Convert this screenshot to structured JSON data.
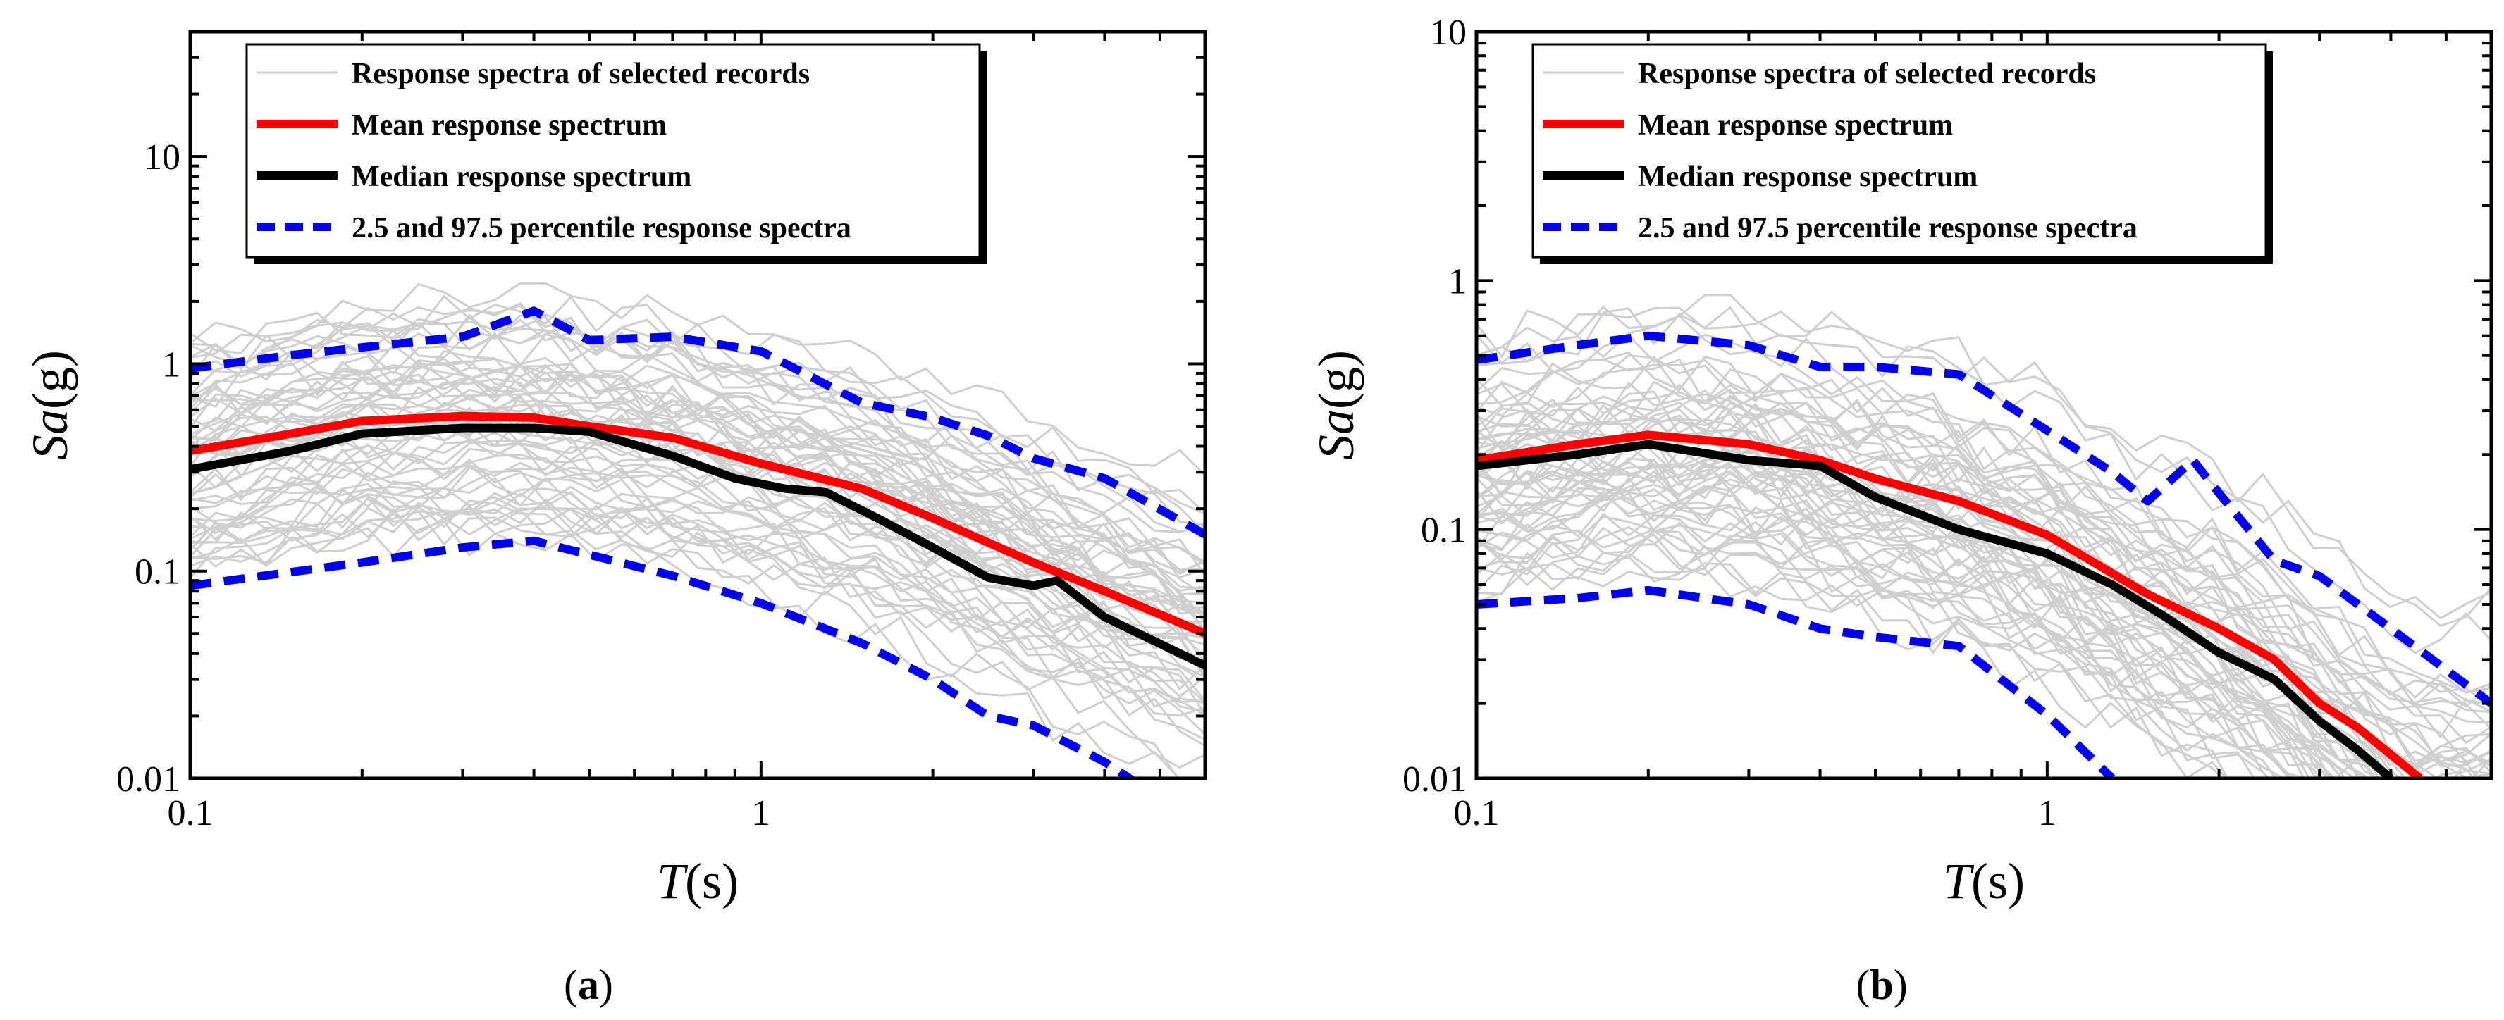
{
  "colors": {
    "records": "#cfcfcf",
    "mean": "#ff0000",
    "median": "#000000",
    "percentile": "#0000ee"
  },
  "chart_data": [
    {
      "type": "line",
      "panel_label": {
        "open": "(",
        "letter": "a",
        "close": ")"
      },
      "xlabel": {
        "italic": "T",
        "rest": "(s)"
      },
      "ylabel": {
        "italic": "Sa",
        "rest": "(g)"
      },
      "xscale": "log",
      "yscale": "log",
      "xlim": [
        0.1,
        6
      ],
      "ylim": [
        0.01,
        40
      ],
      "xticks": [
        {
          "value": 0.1,
          "label": "0.1"
        },
        {
          "value": 1,
          "label": "1"
        }
      ],
      "yticks": [
        {
          "value": 0.01,
          "label": "0.01"
        },
        {
          "value": 0.1,
          "label": "0.1"
        },
        {
          "value": 1,
          "label": "1"
        },
        {
          "value": 10,
          "label": "10"
        }
      ],
      "legend_position": "top-left",
      "legend": [
        "Response spectra of selected records",
        "Mean response spectrum",
        "Median response spectrum",
        "2.5 and 97.5 percentile response spectra"
      ],
      "series": [
        {
          "name": "Mean response spectrum",
          "style": "mean",
          "x": [
            0.1,
            0.15,
            0.2,
            0.3,
            0.4,
            0.5,
            0.7,
            1.0,
            1.5,
            2.0,
            3.0,
            4.0,
            6.0
          ],
          "y": [
            0.38,
            0.46,
            0.53,
            0.56,
            0.55,
            0.5,
            0.44,
            0.33,
            0.25,
            0.18,
            0.11,
            0.08,
            0.05
          ]
        },
        {
          "name": "Median response spectrum",
          "style": "median",
          "x": [
            0.1,
            0.15,
            0.2,
            0.3,
            0.4,
            0.5,
            0.7,
            0.9,
            1.1,
            1.3,
            1.6,
            2.0,
            2.5,
            3.0,
            3.3,
            4.0,
            6.0
          ],
          "y": [
            0.31,
            0.38,
            0.46,
            0.49,
            0.49,
            0.47,
            0.36,
            0.28,
            0.25,
            0.24,
            0.18,
            0.13,
            0.093,
            0.085,
            0.09,
            0.06,
            0.035
          ]
        },
        {
          "name": "97.5 percentile response spectrum",
          "style": "percentile",
          "x": [
            0.1,
            0.15,
            0.2,
            0.3,
            0.4,
            0.5,
            0.7,
            1.0,
            1.5,
            2.0,
            2.5,
            3.0,
            4.0,
            6.0
          ],
          "y": [
            0.95,
            1.1,
            1.2,
            1.35,
            1.8,
            1.3,
            1.35,
            1.15,
            0.65,
            0.55,
            0.45,
            0.35,
            0.28,
            0.15
          ]
        },
        {
          "name": "2.5 percentile response spectrum",
          "style": "percentile",
          "x": [
            0.1,
            0.2,
            0.3,
            0.4,
            0.5,
            0.7,
            1.0,
            1.5,
            2.0,
            2.5,
            3.0,
            4.0,
            5.0
          ],
          "y": [
            0.085,
            0.11,
            0.13,
            0.14,
            0.12,
            0.095,
            0.07,
            0.045,
            0.03,
            0.02,
            0.018,
            0.012,
            0.008
          ]
        }
      ]
    },
    {
      "type": "line",
      "panel_label": {
        "open": "(",
        "letter": "b",
        "close": ")"
      },
      "xlabel": {
        "italic": "T",
        "rest": "(s)"
      },
      "ylabel": {
        "italic": "Sa",
        "rest": "(g)"
      },
      "xscale": "log",
      "yscale": "log",
      "xlim": [
        0.1,
        6
      ],
      "ylim": [
        0.01,
        10
      ],
      "xticks": [
        {
          "value": 0.1,
          "label": "0.1"
        },
        {
          "value": 1,
          "label": "1"
        }
      ],
      "yticks": [
        {
          "value": 0.01,
          "label": "0.01"
        },
        {
          "value": 0.1,
          "label": "0.1"
        },
        {
          "value": 1,
          "label": "1"
        },
        {
          "value": 10,
          "label": "10"
        }
      ],
      "legend_position": "top-left",
      "legend": [
        "Response spectra of selected records",
        "Mean response spectrum",
        "Median response spectrum",
        "2.5 and 97.5 percentile response spectra"
      ],
      "series": [
        {
          "name": "Mean response spectrum",
          "style": "mean",
          "x": [
            0.1,
            0.15,
            0.2,
            0.3,
            0.4,
            0.5,
            0.7,
            1.0,
            1.5,
            2.0,
            2.5,
            3.0,
            3.5,
            4.5
          ],
          "y": [
            0.19,
            0.22,
            0.24,
            0.22,
            0.19,
            0.16,
            0.13,
            0.095,
            0.055,
            0.04,
            0.03,
            0.02,
            0.016,
            0.01
          ]
        },
        {
          "name": "Median response spectrum",
          "style": "median",
          "x": [
            0.1,
            0.15,
            0.2,
            0.3,
            0.4,
            0.5,
            0.7,
            1.0,
            1.3,
            1.6,
            2.0,
            2.5,
            3.0,
            3.5,
            4.0
          ],
          "y": [
            0.18,
            0.2,
            0.22,
            0.19,
            0.18,
            0.135,
            0.1,
            0.08,
            0.06,
            0.045,
            0.032,
            0.025,
            0.017,
            0.013,
            0.01
          ]
        },
        {
          "name": "97.5 percentile response spectrum",
          "style": "percentile",
          "x": [
            0.1,
            0.15,
            0.2,
            0.3,
            0.4,
            0.5,
            0.7,
            1.0,
            1.3,
            1.5,
            1.8,
            2.0,
            2.5,
            3.0,
            4.0,
            6.0
          ],
          "y": [
            0.48,
            0.55,
            0.6,
            0.55,
            0.45,
            0.45,
            0.42,
            0.25,
            0.17,
            0.13,
            0.19,
            0.14,
            0.075,
            0.065,
            0.04,
            0.02
          ]
        },
        {
          "name": "2.5 percentile response spectrum",
          "style": "percentile",
          "x": [
            0.1,
            0.15,
            0.2,
            0.3,
            0.4,
            0.5,
            0.7,
            1.0,
            1.3
          ],
          "y": [
            0.05,
            0.053,
            0.057,
            0.05,
            0.04,
            0.037,
            0.034,
            0.018,
            0.01
          ]
        }
      ]
    }
  ]
}
